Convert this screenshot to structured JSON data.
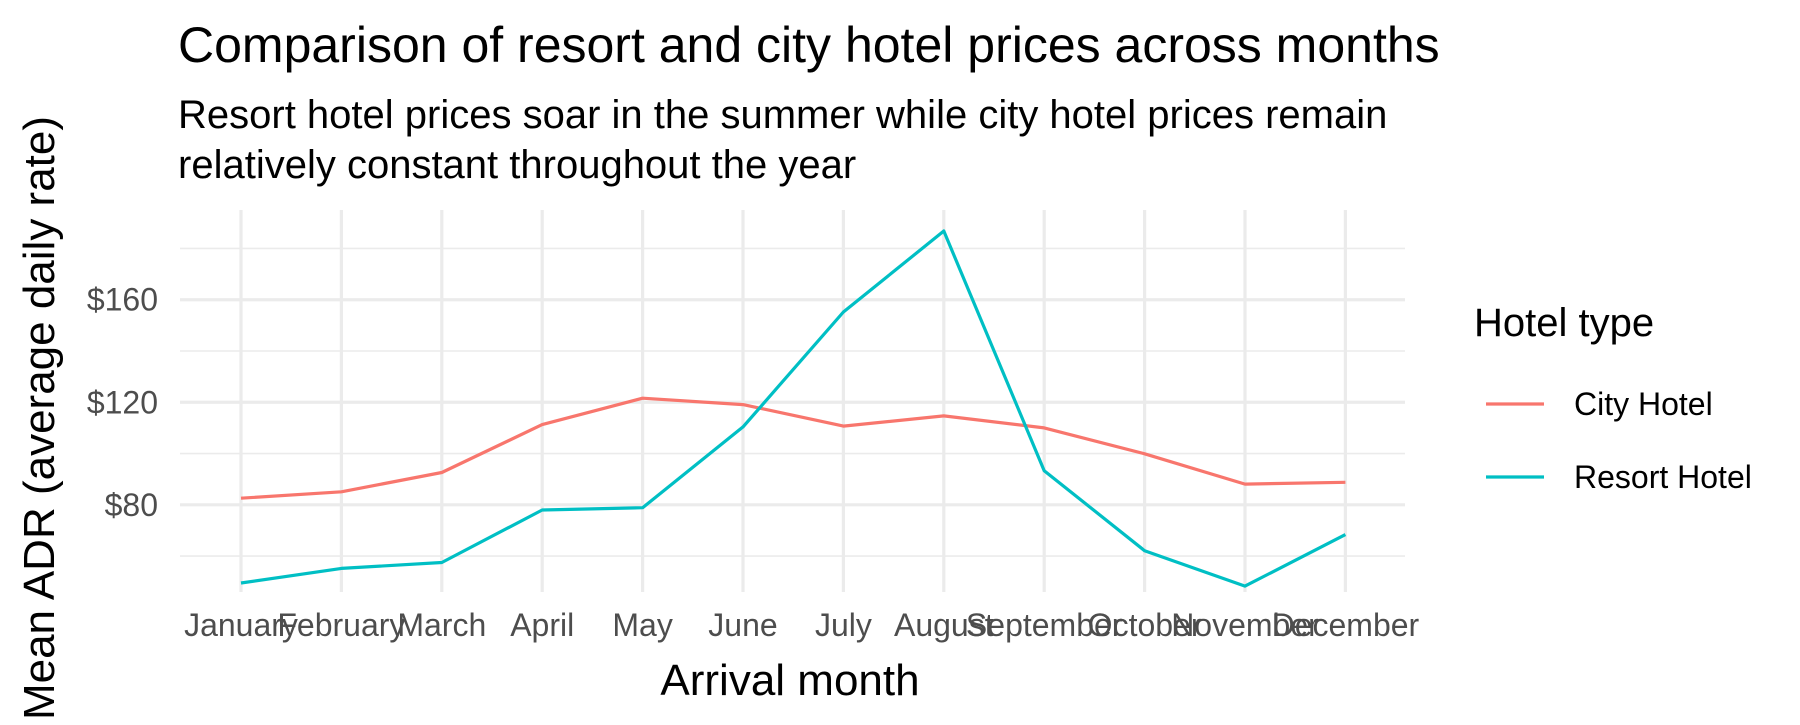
{
  "chart_data": {
    "type": "line",
    "title": "Comparison of resort and city hotel prices across months",
    "subtitle_lines": [
      "Resort hotel prices soar in the summer while city hotel prices remain",
      "relatively constant throughout the year"
    ],
    "xlabel": "Arrival month",
    "ylabel": "Mean ADR (average daily rate)",
    "categories": [
      "January",
      "February",
      "March",
      "April",
      "May",
      "June",
      "July",
      "August",
      "September",
      "October",
      "November",
      "December"
    ],
    "y_ticks": [
      80,
      120,
      160
    ],
    "y_tick_labels": [
      "$80",
      "$120",
      "$160"
    ],
    "ylim": [
      46,
      195
    ],
    "grid": true,
    "legend": {
      "title": "Hotel type",
      "position": "right"
    },
    "series": [
      {
        "name": "City Hotel",
        "color": "#F8766D",
        "values": [
          82.6,
          85.1,
          92.6,
          111.3,
          121.6,
          119.1,
          110.7,
          114.7,
          110.0,
          99.9,
          88.1,
          88.8
        ]
      },
      {
        "name": "Resort Hotel",
        "color": "#00BFC4",
        "values": [
          49.5,
          55.2,
          57.5,
          78.0,
          78.9,
          110.4,
          155.2,
          186.8,
          93.3,
          62.1,
          48.3,
          68.4
        ]
      }
    ]
  }
}
